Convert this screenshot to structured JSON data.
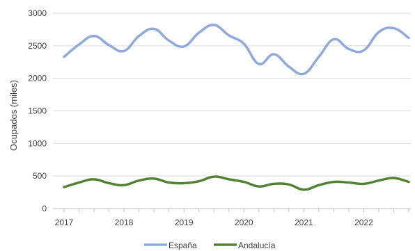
{
  "chart_data": {
    "type": "line",
    "title": "",
    "xlabel": "",
    "ylabel": "Ocupados (miles)",
    "ylim": [
      0,
      3000
    ],
    "yticks": [
      0,
      500,
      1000,
      1500,
      2000,
      2500,
      3000
    ],
    "xticks": [
      "2017",
      "2018",
      "2019",
      "2020",
      "2021",
      "2022"
    ],
    "grid": "horizontal",
    "legend": "bottom",
    "x": [
      "2017T1",
      "2017T2",
      "2017T3",
      "2017T4",
      "2018T1",
      "2018T2",
      "2018T3",
      "2018T4",
      "2019T1",
      "2019T2",
      "2019T3",
      "2019T4",
      "2020T1",
      "2020T2",
      "2020T3",
      "2020T4",
      "2021T1",
      "2021T2",
      "2021T3",
      "2021T4",
      "2022T1",
      "2022T2",
      "2022T3",
      "2022T4"
    ],
    "series": [
      {
        "name": "España",
        "color": "#8EA9DB",
        "values": [
          2330,
          2520,
          2650,
          2510,
          2420,
          2650,
          2760,
          2580,
          2490,
          2700,
          2820,
          2660,
          2530,
          2220,
          2370,
          2180,
          2070,
          2330,
          2600,
          2450,
          2430,
          2710,
          2770,
          2620
        ]
      },
      {
        "name": "Andalucía",
        "color": "#548235",
        "values": [
          330,
          400,
          450,
          390,
          360,
          430,
          460,
          400,
          390,
          420,
          490,
          450,
          410,
          340,
          380,
          370,
          290,
          360,
          410,
          400,
          380,
          430,
          470,
          410
        ]
      }
    ]
  }
}
